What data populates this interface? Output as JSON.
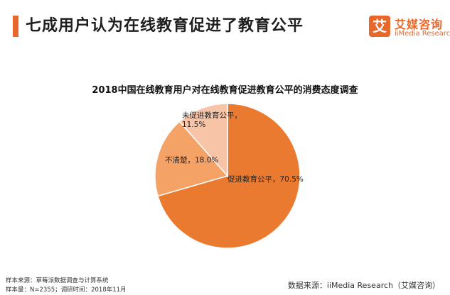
{
  "header": {
    "title": "七成用户认为在线教育促进了教育公平"
  },
  "logo": {
    "mark": "艾",
    "cn": "艾媒咨询",
    "en": "iiMedia Research"
  },
  "chart_data": {
    "type": "pie",
    "title": "2018中国在线教育用户对在线教育促进教育公平的消费态度调查",
    "slices": [
      {
        "label": "促进教育公平",
        "value": 70.5,
        "display": "促进教育公平，70.5%",
        "color": "#ea7a2f"
      },
      {
        "label": "不清楚",
        "value": 18.0,
        "display": "不清楚，18.0%",
        "color": "#f4a266"
      },
      {
        "label": "未促进教育公平",
        "value": 11.5,
        "display_line1": "未促进教育公平，",
        "display_line2": "11.5%",
        "color": "#f8c4a7"
      }
    ],
    "start_angle_deg": 0,
    "direction": "clockwise"
  },
  "footer": {
    "note1": "样本来源：草莓派数据调查与计算系统",
    "note2": "样本量：N=2355；调研时间：2018年11月",
    "source": "数据来源：iiMedia Research（艾媒咨询）"
  }
}
